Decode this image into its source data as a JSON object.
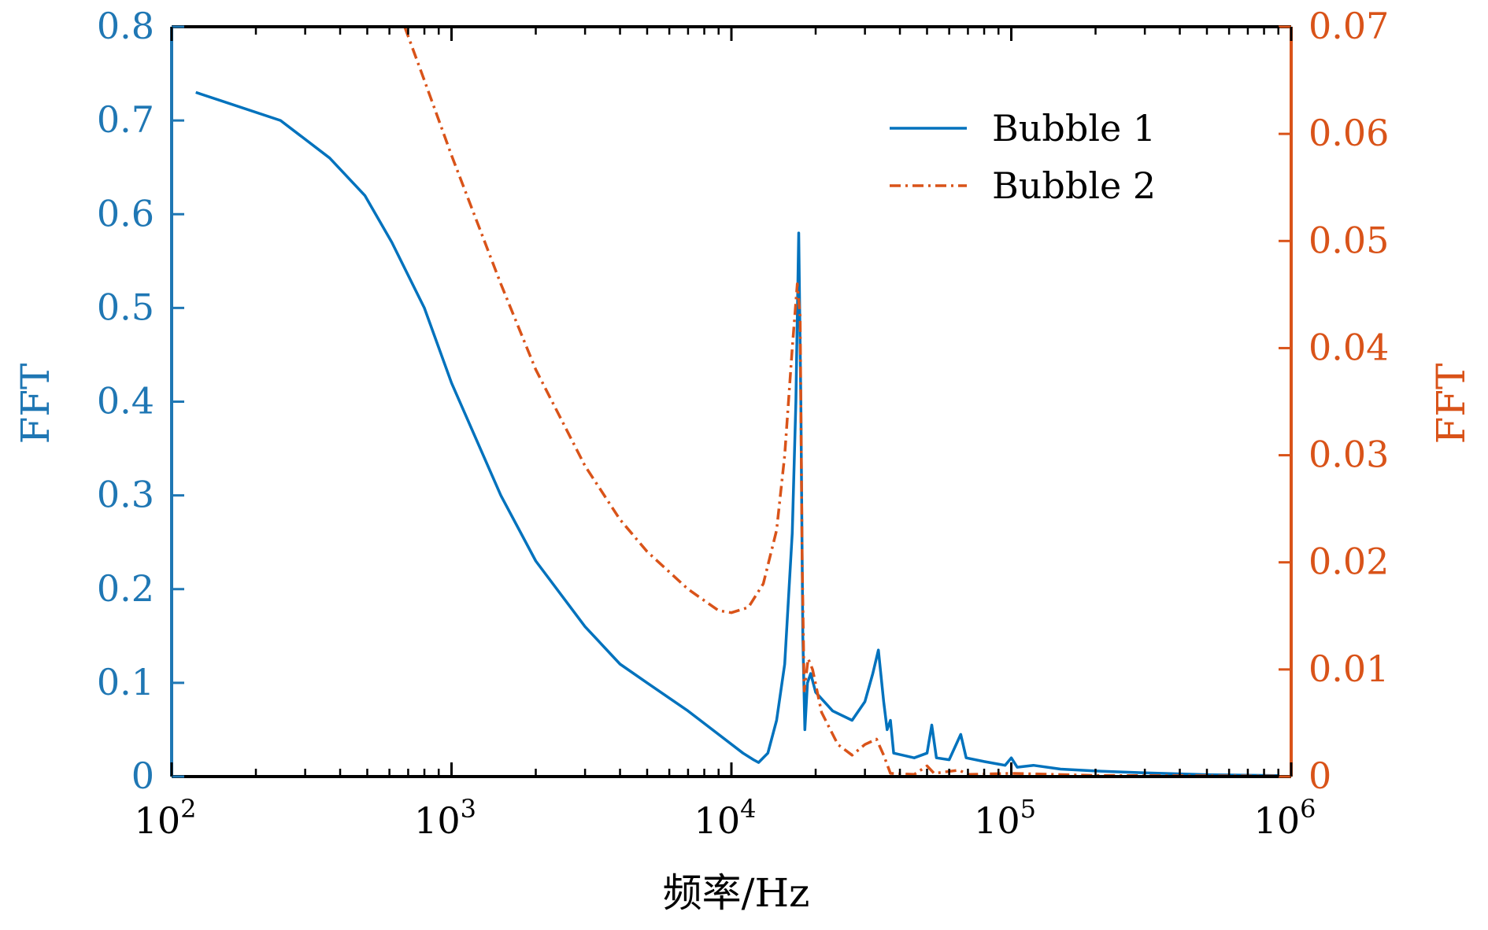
{
  "chart_data": {
    "type": "line",
    "title": "",
    "xlabel": "频率/Hz",
    "ylabel_left": "FFT",
    "ylabel_right": "FFT",
    "xscale": "log",
    "xlim": [
      100,
      1000000
    ],
    "ylim_left": [
      0,
      0.8
    ],
    "ylim_right": [
      0,
      0.07
    ],
    "grid": false,
    "legend_position": "top-right",
    "x_ticks": [
      {
        "base": "10",
        "exp": "2",
        "value": 100
      },
      {
        "base": "10",
        "exp": "3",
        "value": 1000
      },
      {
        "base": "10",
        "exp": "4",
        "value": 10000
      },
      {
        "base": "10",
        "exp": "5",
        "value": 100000
      },
      {
        "base": "10",
        "exp": "6",
        "value": 1000000
      }
    ],
    "y_ticks_left": [
      "0",
      "0.1",
      "0.2",
      "0.3",
      "0.4",
      "0.5",
      "0.6",
      "0.7",
      "0.8"
    ],
    "y_ticks_right": [
      "0",
      "0.01",
      "0.02",
      "0.03",
      "0.04",
      "0.05",
      "0.06",
      "0.07"
    ],
    "colors": {
      "left_axis": "#1f77b4",
      "right_axis": "#d95319",
      "frame": "#000000"
    },
    "series": [
      {
        "name": "Bubble 1",
        "axis": "left",
        "color": "#0072bd",
        "style": "solid",
        "points": [
          [
            122,
            0.73
          ],
          [
            245,
            0.7
          ],
          [
            367,
            0.66
          ],
          [
            490,
            0.62
          ],
          [
            612,
            0.57
          ],
          [
            800,
            0.5
          ],
          [
            1000,
            0.42
          ],
          [
            1500,
            0.3
          ],
          [
            2000,
            0.23
          ],
          [
            3000,
            0.16
          ],
          [
            4000,
            0.12
          ],
          [
            5000,
            0.1
          ],
          [
            7000,
            0.07
          ],
          [
            9000,
            0.045
          ],
          [
            11000,
            0.025
          ],
          [
            12000,
            0.018
          ],
          [
            12500,
            0.015
          ],
          [
            13500,
            0.025
          ],
          [
            14500,
            0.06
          ],
          [
            15500,
            0.12
          ],
          [
            16500,
            0.26
          ],
          [
            17000,
            0.4
          ],
          [
            17400,
            0.58
          ],
          [
            17700,
            0.4
          ],
          [
            18000,
            0.15
          ],
          [
            18300,
            0.05
          ],
          [
            18700,
            0.1
          ],
          [
            19200,
            0.11
          ],
          [
            20000,
            0.09
          ],
          [
            23000,
            0.07
          ],
          [
            27000,
            0.06
          ],
          [
            30000,
            0.08
          ],
          [
            32000,
            0.11
          ],
          [
            33500,
            0.135
          ],
          [
            35000,
            0.08
          ],
          [
            36000,
            0.05
          ],
          [
            37000,
            0.06
          ],
          [
            38000,
            0.025
          ],
          [
            45000,
            0.02
          ],
          [
            50000,
            0.025
          ],
          [
            52000,
            0.055
          ],
          [
            54000,
            0.02
          ],
          [
            60000,
            0.018
          ],
          [
            66000,
            0.045
          ],
          [
            69000,
            0.02
          ],
          [
            80000,
            0.016
          ],
          [
            95000,
            0.012
          ],
          [
            100000,
            0.02
          ],
          [
            105000,
            0.01
          ],
          [
            120000,
            0.012
          ],
          [
            150000,
            0.008
          ],
          [
            200000,
            0.006
          ],
          [
            300000,
            0.004
          ],
          [
            500000,
            0.002
          ],
          [
            900000,
            0.001
          ]
        ]
      },
      {
        "name": "Bubble 2",
        "axis": "right",
        "color": "#d95319",
        "style": "dashdot",
        "points": [
          [
            680,
            0.07
          ],
          [
            800,
            0.065
          ],
          [
            1000,
            0.058
          ],
          [
            1500,
            0.046
          ],
          [
            2000,
            0.038
          ],
          [
            3000,
            0.029
          ],
          [
            4000,
            0.024
          ],
          [
            5000,
            0.021
          ],
          [
            7000,
            0.0175
          ],
          [
            9000,
            0.0155
          ],
          [
            10000,
            0.0153
          ],
          [
            11500,
            0.0158
          ],
          [
            13000,
            0.018
          ],
          [
            14500,
            0.023
          ],
          [
            15500,
            0.03
          ],
          [
            16500,
            0.04
          ],
          [
            17200,
            0.046
          ],
          [
            17600,
            0.043
          ],
          [
            17900,
            0.02
          ],
          [
            18200,
            0.008
          ],
          [
            18800,
            0.011
          ],
          [
            19500,
            0.01
          ],
          [
            21000,
            0.006
          ],
          [
            24000,
            0.003
          ],
          [
            27000,
            0.002
          ],
          [
            30000,
            0.003
          ],
          [
            33000,
            0.0035
          ],
          [
            35000,
            0.002
          ],
          [
            37000,
            0.0003
          ],
          [
            45000,
            0.0002
          ],
          [
            50000,
            0.001
          ],
          [
            53000,
            0.0003
          ],
          [
            65000,
            0.0006
          ],
          [
            70000,
            0.0002
          ],
          [
            100000,
            0.0003
          ],
          [
            200000,
            0.0001
          ],
          [
            900000,
            5e-05
          ]
        ]
      }
    ]
  }
}
